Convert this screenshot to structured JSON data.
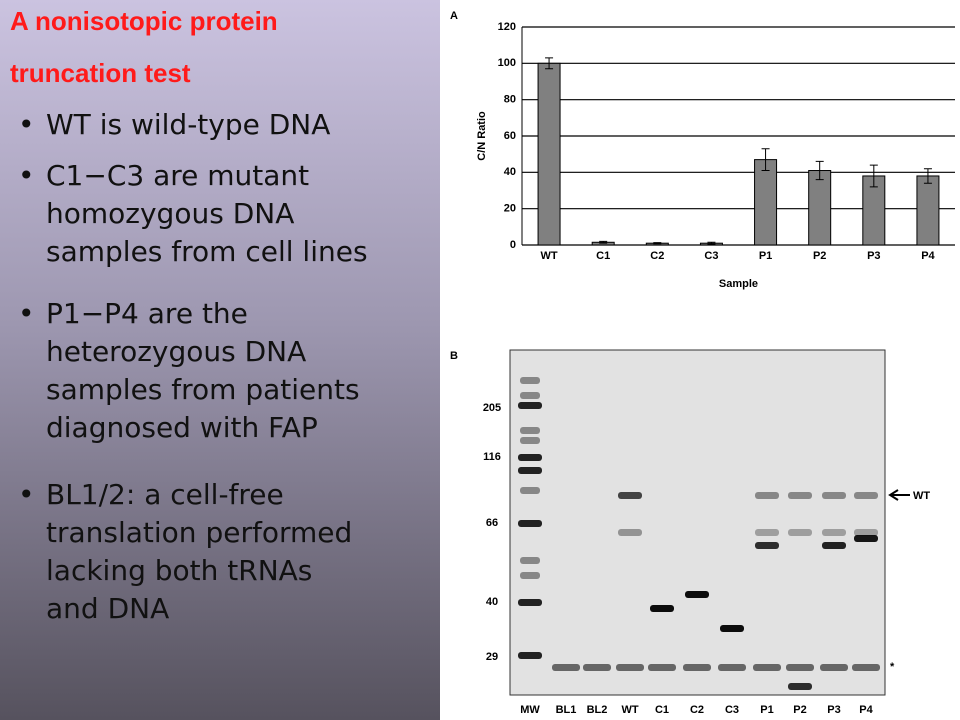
{
  "slide": {
    "title_lines": [
      "A nonisotopic protein",
      "truncation test"
    ],
    "bullets": [
      [
        "WT is wild-type DNA"
      ],
      [
        "C1−C3 are mutant",
        "homozygous DNA",
        "samples from cell lines"
      ],
      [
        "P1−P4 are the",
        "heterozygous DNA",
        "samples from patients",
        "diagnosed with FAP"
      ],
      [
        "BL1/2: a cell-free",
        "translation performed",
        "lacking both tRNAs",
        "and DNA"
      ]
    ]
  },
  "chart_data": {
    "type": "bar",
    "panel": "A",
    "ylabel": "C/N Ratio",
    "xlabel": "Sample",
    "categories": [
      "WT",
      "C1",
      "C2",
      "C3",
      "P1",
      "P2",
      "P3",
      "P4"
    ],
    "values": [
      100,
      1.5,
      1,
      1,
      47,
      41,
      38,
      38
    ],
    "errors": [
      3,
      0.5,
      0.3,
      0.5,
      6,
      5,
      6,
      4
    ],
    "color": "#808080",
    "ylim": [
      0,
      120
    ],
    "yticks": [
      0,
      20,
      40,
      60,
      80,
      100,
      120
    ],
    "grid": true
  },
  "gel": {
    "panel": "B",
    "markers": [
      205,
      116,
      66,
      40,
      29
    ],
    "lanes": [
      "MW",
      "BL1",
      "BL2",
      "WT",
      "C1",
      "C2",
      "C3",
      "P1",
      "P2",
      "P3",
      "P4"
    ],
    "arrow_label": "WT",
    "star": "*"
  }
}
